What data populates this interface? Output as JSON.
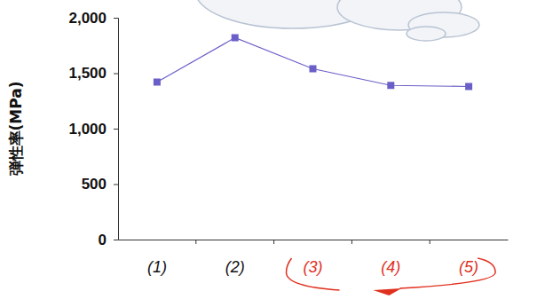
{
  "chart_data": {
    "type": "line",
    "y_label": "弾性率(MPa)",
    "categories": [
      "(1)",
      "(2)",
      "(3)",
      "(4)",
      "(5)"
    ],
    "values": [
      1420,
      1820,
      1540,
      1390,
      1380
    ],
    "color": "#6a5fc8",
    "marker": "square",
    "line_style": "solid",
    "ylim": [
      0,
      2000
    ],
    "yticks": [
      0,
      500,
      {
        "value": 1000,
        "label": "1,000"
      },
      {
        "value": 1500,
        "label": "1,500"
      },
      {
        "value": 2000,
        "label": "2,000"
      }
    ],
    "grid": false
  }
}
